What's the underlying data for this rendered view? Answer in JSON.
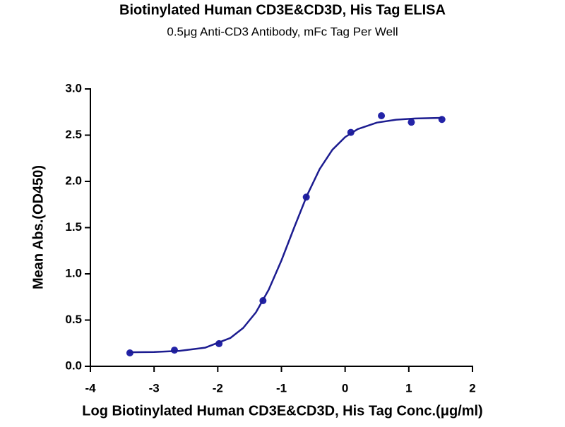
{
  "chart_data": {
    "type": "scatter",
    "title": "Biotinylated Human CD3E&CD3D, His Tag ELISA",
    "subtitle": "0.5μg Anti-CD3 Antibody, mFc Tag Per Well",
    "x_label": "Log Biotinylated Human CD3E&CD3D, His Tag Conc.(μg/ml)",
    "y_label": "Mean Abs.(OD450)",
    "xlim": [
      -4,
      2
    ],
    "ylim": [
      0,
      3
    ],
    "xticks": [
      -4,
      -3,
      -2,
      -1,
      0,
      1,
      2
    ],
    "yticks": [
      {
        "value": 0,
        "label": "0.0"
      },
      0.5,
      {
        "value": 1,
        "label": "1.0"
      },
      1.5,
      {
        "value": 2,
        "label": "2.0"
      },
      2.5,
      {
        "value": 3,
        "label": "3.0"
      }
    ],
    "series": [
      {
        "color": "#2424a8",
        "mode": "markers",
        "x": [
          -3.38,
          -2.68,
          -1.98,
          -1.29,
          -0.61,
          0.09,
          0.57,
          1.04,
          1.52
        ],
        "values": [
          0.145,
          0.175,
          0.245,
          0.71,
          1.83,
          2.53,
          2.71,
          2.64,
          2.67
        ]
      },
      {
        "color": "#1c1c90",
        "mode": "line",
        "x": [
          -3.4,
          -3.0,
          -2.6,
          -2.2,
          -1.8,
          -1.6,
          -1.4,
          -1.2,
          -1.0,
          -0.8,
          -0.6,
          -0.4,
          -0.2,
          0,
          0.2,
          0.5,
          0.8,
          1.1,
          1.52
        ],
        "values": [
          0.152,
          0.155,
          0.167,
          0.201,
          0.307,
          0.415,
          0.584,
          0.828,
          1.145,
          1.501,
          1.846,
          2.133,
          2.342,
          2.479,
          2.566,
          2.636,
          2.667,
          2.68,
          2.687
        ]
      }
    ]
  }
}
